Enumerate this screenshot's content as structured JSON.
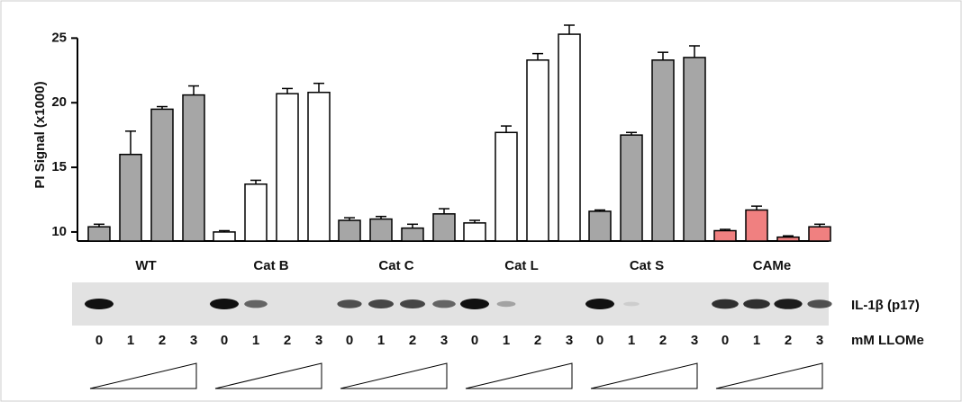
{
  "chart_data": {
    "type": "bar",
    "y_label": "PI Signal (x1000)",
    "ylim": [
      9.3,
      26
    ],
    "yticks": [
      10,
      15,
      20,
      25
    ],
    "doses": [
      "0",
      "1",
      "2",
      "3"
    ],
    "dose_label": "mM LLOMe",
    "blot_label": "IL-1β (p17)",
    "series": [
      {
        "name": "WT",
        "color": "#a6a6a6",
        "values": [
          10.4,
          16.0,
          19.5,
          20.6
        ],
        "errors": [
          0.2,
          1.8,
          0.2,
          0.7
        ]
      },
      {
        "name": "Cat B",
        "color": "#ffffff",
        "values": [
          10.0,
          13.7,
          20.7,
          20.8
        ],
        "errors": [
          0.1,
          0.3,
          0.4,
          0.7
        ]
      },
      {
        "name": "Cat C",
        "color": "#a6a6a6",
        "values": [
          10.9,
          11.0,
          10.3,
          11.4
        ],
        "errors": [
          0.2,
          0.2,
          0.3,
          0.4
        ]
      },
      {
        "name": "Cat L",
        "color": "#ffffff",
        "values": [
          10.7,
          17.7,
          23.3,
          25.3
        ],
        "errors": [
          0.2,
          0.5,
          0.5,
          0.7
        ]
      },
      {
        "name": "Cat S",
        "color": "#a6a6a6",
        "values": [
          11.6,
          17.5,
          23.3,
          23.5
        ],
        "errors": [
          0.1,
          0.2,
          0.6,
          0.9
        ]
      },
      {
        "name": "CAMe",
        "color": "#f08080",
        "values": [
          10.1,
          11.7,
          9.6,
          10.4
        ],
        "errors": [
          0.1,
          0.3,
          0.1,
          0.2
        ]
      }
    ]
  }
}
